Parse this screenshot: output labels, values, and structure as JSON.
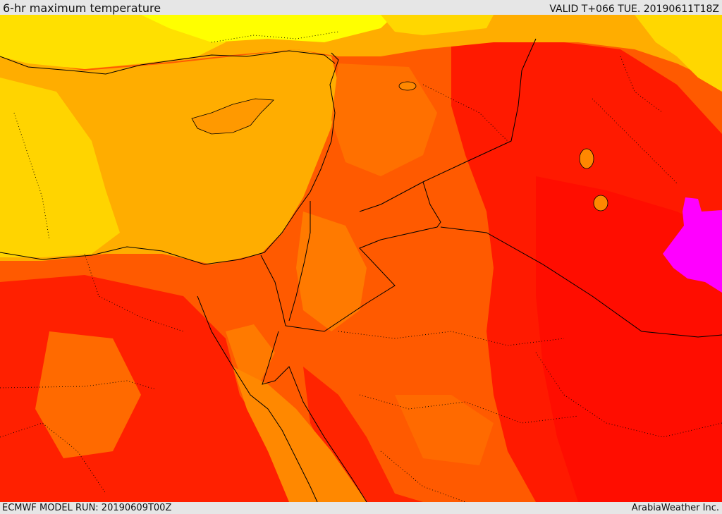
{
  "header": {
    "title": "6-hr maximum temperature",
    "valid": "VALID T+066 TUE. 20190611T18Z"
  },
  "footer": {
    "model_run": "ECMWF MODEL RUN: 20190609T00Z",
    "credit": "ArabiaWeather Inc."
  },
  "colors": {
    "band_yellow": "#ffff00",
    "band_gold": "#ffd700",
    "band_amber": "#ffad00",
    "band_orange": "#ff8800",
    "band_deep_orange": "#ff5a00",
    "band_red_orange": "#ff3300",
    "band_red": "#ff1400",
    "band_magenta": "#ff00ff"
  }
}
